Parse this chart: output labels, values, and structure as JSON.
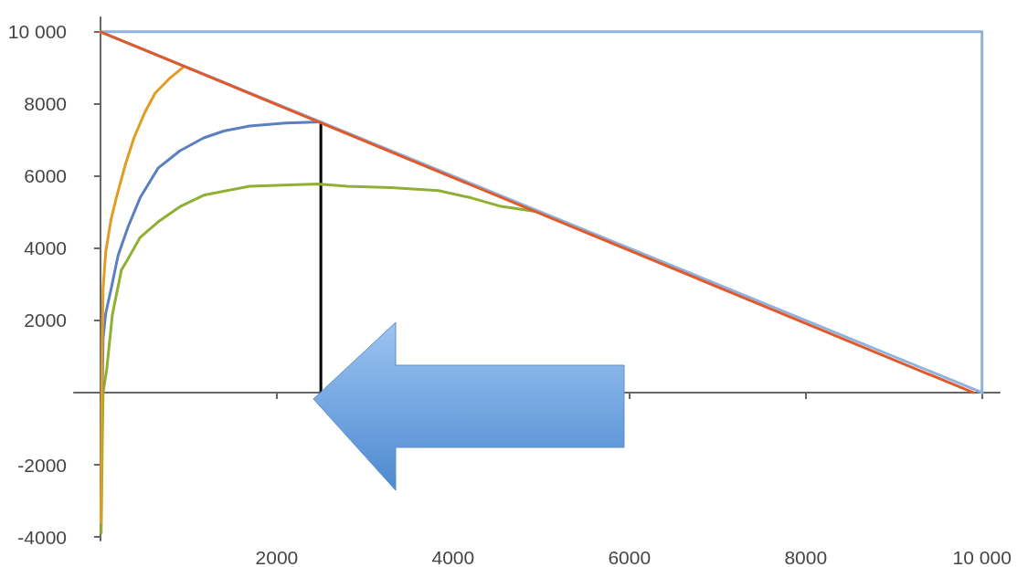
{
  "chart_data": {
    "type": "line",
    "marker": "none",
    "xlim": [
      -300,
      10200
    ],
    "ylim": [
      -4100,
      10400
    ],
    "xticks": [
      2000,
      4000,
      6000,
      8000,
      {
        "value": 10000,
        "label": "10 000"
      }
    ],
    "yticks": [
      -4000,
      -2000,
      2000,
      4000,
      6000,
      8000,
      {
        "value": 10000,
        "label": "10 000"
      }
    ],
    "series": [
      {
        "color": "#e0592a",
        "x": [
          0,
          9900
        ],
        "values": [
          10000,
          0
        ]
      },
      {
        "color": "#8fb1dc",
        "x": [
          0,
          10000
        ],
        "values": [
          10000,
          0
        ]
      },
      {
        "color": "#8fb1dc",
        "x": [
          0,
          10000,
          10000
        ],
        "values": [
          10000,
          10000,
          0
        ]
      },
      {
        "color": "#e19c24",
        "x": [
          6,
          10,
          15,
          20,
          30,
          60,
          120,
          180,
          280,
          380,
          500,
          620,
          780,
          930
        ],
        "values": [
          -3600,
          -1800,
          0,
          1500,
          2900,
          3900,
          4800,
          5400,
          6300,
          7060,
          7750,
          8300,
          8700,
          9000
        ]
      },
      {
        "color": "#5b7fc0",
        "x": [
          20,
          30,
          60,
          124,
          200,
          311,
          450,
          653,
          900,
          1171,
          1400,
          1690,
          2100,
          2500
        ],
        "values": [
          0,
          1500,
          2200,
          2910,
          3800,
          4580,
          5400,
          6220,
          6700,
          7060,
          7250,
          7390,
          7470,
          7500
        ]
      },
      {
        "color": "#8fb032",
        "x": [
          8,
          15,
          22,
          30,
          72,
          135,
          238,
          311,
          450,
          653,
          900,
          1171,
          1690,
          2466,
          2798,
          3300,
          3834,
          4200,
          4528,
          5000
        ],
        "values": [
          -3900,
          -2600,
          -1200,
          0,
          670,
          2160,
          3400,
          3700,
          4300,
          4730,
          5150,
          5470,
          5720,
          5780,
          5720,
          5680,
          5600,
          5400,
          5170,
          5000
        ]
      },
      {
        "color": "#000000",
        "x": [
          2500,
          2500
        ],
        "values": [
          0,
          7500
        ]
      }
    ]
  }
}
